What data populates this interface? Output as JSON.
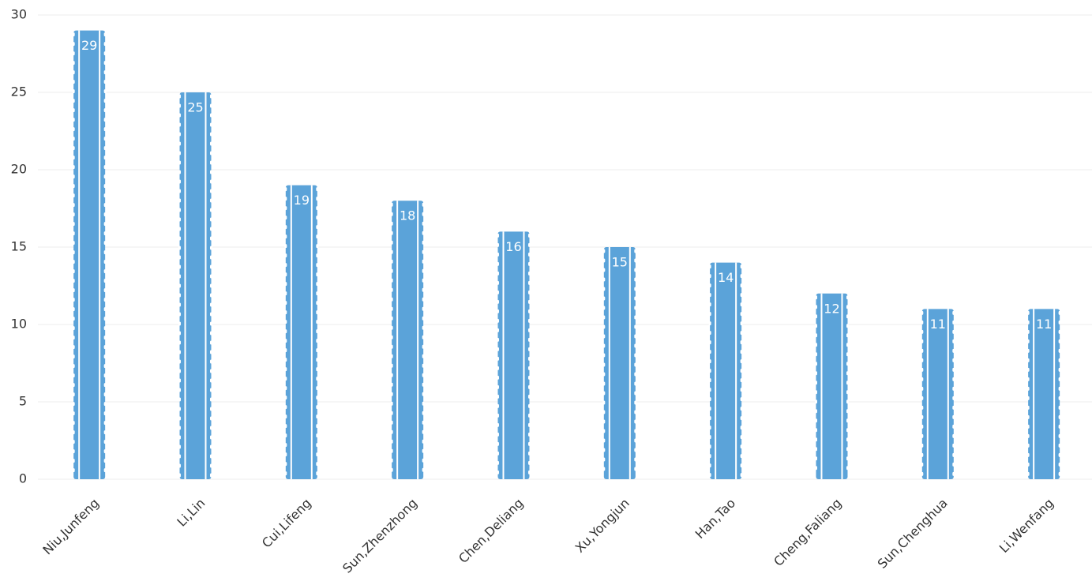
{
  "chart_data": {
    "type": "bar",
    "categories": [
      "Niu,Junfeng",
      "Li,Lin",
      "Cui,Lifeng",
      "Sun,Zhenzhong",
      "Chen,Deliang",
      "Xu,Yongjun",
      "Han,Tao",
      "Cheng,Faliang",
      "Sun,Chenghua",
      "Li,Wenfang"
    ],
    "values": [
      29,
      25,
      19,
      18,
      16,
      15,
      14,
      12,
      11,
      11
    ],
    "color": "#5ba3d9",
    "ylim": [
      0,
      30
    ],
    "yticks": [
      0,
      5,
      10,
      15,
      20,
      25,
      30
    ],
    "grid": true
  }
}
